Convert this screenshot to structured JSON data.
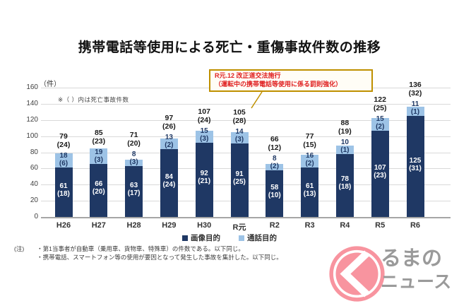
{
  "title": "携帯電話等使用による死亡・重傷事故件数の推移",
  "annotation": {
    "line1": "R元.12 改正道交法施行",
    "line2": "（運転中の携帯電話等使用に係る罰則強化）"
  },
  "footnote": {
    "prefix": "(注)",
    "line1": "・第1当事者が自動車（乗用車、貨物車、特殊車）の件数である。以下同じ。",
    "line2": "・携帯電話、スマートフォン等の使用が要因となって発生した事故を集計した。以下同じ。"
  },
  "logo": {
    "mark": "ku-circle-mark",
    "line1": "るまの",
    "line2": "ニュース",
    "pink": "#f8949f",
    "gray": "#9a9a9a"
  },
  "colors": {
    "dark_series": "#1f3864",
    "light_series": "#9dc3e6",
    "gridline": "#d9d9d9",
    "baseline": "#a6a6a6",
    "annotation_border": "#bf9000",
    "annotation_text": "#e02020"
  },
  "chart_data": {
    "type": "bar",
    "stacked": true,
    "title": "携帯電話等使用による死亡・重傷事故件数の推移",
    "unit_label": "（件）",
    "note": "※（ ）内は死亡事故件数",
    "categories": [
      "H26",
      "H27",
      "H28",
      "H29",
      "H30",
      "R元",
      "R2",
      "R3",
      "R4",
      "R5",
      "R6"
    ],
    "series": [
      {
        "name": "画像目的",
        "color": "#1f3864",
        "values": [
          61,
          66,
          63,
          84,
          92,
          91,
          58,
          61,
          78,
          107,
          125
        ],
        "fatalities": [
          18,
          20,
          17,
          24,
          21,
          25,
          10,
          13,
          18,
          23,
          31
        ]
      },
      {
        "name": "通話目的",
        "color": "#9dc3e6",
        "values": [
          18,
          19,
          8,
          13,
          15,
          14,
          8,
          16,
          10,
          15,
          11
        ],
        "fatalities": [
          6,
          3,
          3,
          2,
          3,
          3,
          2,
          2,
          1,
          2,
          1
        ]
      }
    ],
    "totals": [
      79,
      85,
      71,
      97,
      107,
      105,
      66,
      77,
      88,
      122,
      136
    ],
    "total_fatalities": [
      24,
      23,
      20,
      26,
      24,
      28,
      12,
      15,
      19,
      25,
      32
    ],
    "ylim": [
      0,
      160
    ],
    "ytick_step": 20,
    "grid": true,
    "legend_position": "bottom"
  }
}
